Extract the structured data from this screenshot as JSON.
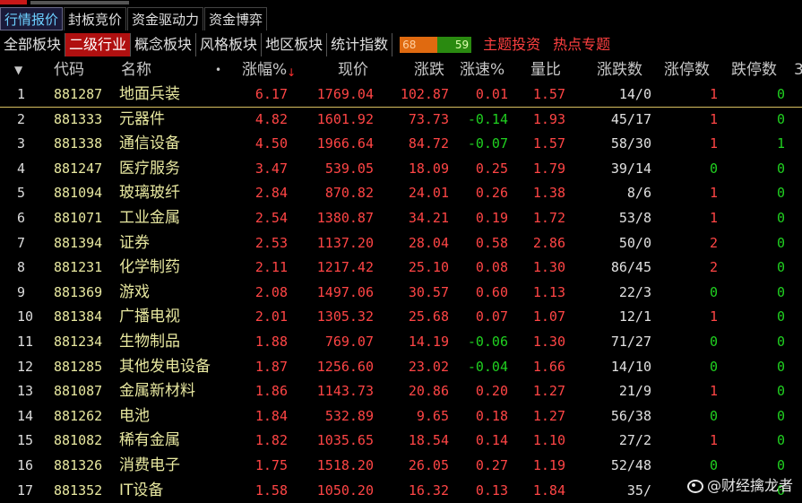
{
  "tabs_main": [
    "行情报价",
    "封板竞价",
    "资金驱动力",
    "资金博弈"
  ],
  "tabs_sector": [
    "全部板块",
    "二级行业",
    "概念板块",
    "风格板块",
    "地区板块",
    "统计指数"
  ],
  "ratio_up": "68",
  "ratio_down": "59",
  "tabs_extra": [
    "主题投资",
    "热点专题"
  ],
  "header": {
    "sort_icon": "▼",
    "code": "代码",
    "name": "名称",
    "dot": "•",
    "pct": "涨幅%",
    "price": "现价",
    "change": "涨跌",
    "speed": "涨速%",
    "volratio": "量比",
    "updown": "涨跌数",
    "limitup": "涨停数",
    "limitdown": "跌停数",
    "more": "3"
  },
  "rows": [
    {
      "idx": "1",
      "code": "881287",
      "name": "地面兵装",
      "pct": "6.17",
      "price": "1769.04",
      "chg": "102.87",
      "spd": "0.01",
      "vr": "1.57",
      "ud": "14/0",
      "lu": "1",
      "ld": "0"
    },
    {
      "idx": "2",
      "code": "881333",
      "name": "元器件",
      "pct": "4.82",
      "price": "1601.92",
      "chg": "73.73",
      "spd": "-0.14",
      "vr": "1.93",
      "ud": "45/17",
      "lu": "1",
      "ld": "0"
    },
    {
      "idx": "3",
      "code": "881338",
      "name": "通信设备",
      "pct": "4.50",
      "price": "1966.64",
      "chg": "84.72",
      "spd": "-0.07",
      "vr": "1.57",
      "ud": "58/30",
      "lu": "1",
      "ld": "1"
    },
    {
      "idx": "4",
      "code": "881247",
      "name": "医疗服务",
      "pct": "3.47",
      "price": "539.05",
      "chg": "18.09",
      "spd": "0.25",
      "vr": "1.79",
      "ud": "39/14",
      "lu": "0",
      "ld": "0"
    },
    {
      "idx": "5",
      "code": "881094",
      "name": "玻璃玻纤",
      "pct": "2.84",
      "price": "870.82",
      "chg": "24.01",
      "spd": "0.26",
      "vr": "1.38",
      "ud": "8/6",
      "lu": "1",
      "ld": "0"
    },
    {
      "idx": "6",
      "code": "881071",
      "name": "工业金属",
      "pct": "2.54",
      "price": "1380.87",
      "chg": "34.21",
      "spd": "0.19",
      "vr": "1.72",
      "ud": "53/8",
      "lu": "1",
      "ld": "0"
    },
    {
      "idx": "7",
      "code": "881394",
      "name": "证券",
      "pct": "2.53",
      "price": "1137.20",
      "chg": "28.04",
      "spd": "0.58",
      "vr": "2.86",
      "ud": "50/0",
      "lu": "2",
      "ld": "0"
    },
    {
      "idx": "8",
      "code": "881231",
      "name": "化学制药",
      "pct": "2.11",
      "price": "1217.42",
      "chg": "25.10",
      "spd": "0.08",
      "vr": "1.30",
      "ud": "86/45",
      "lu": "2",
      "ld": "0"
    },
    {
      "idx": "9",
      "code": "881369",
      "name": "游戏",
      "pct": "2.08",
      "price": "1497.06",
      "chg": "30.57",
      "spd": "0.60",
      "vr": "1.13",
      "ud": "22/3",
      "lu": "0",
      "ld": "0"
    },
    {
      "idx": "10",
      "code": "881384",
      "name": "广播电视",
      "pct": "2.01",
      "price": "1305.32",
      "chg": "25.68",
      "spd": "0.07",
      "vr": "1.07",
      "ud": "12/1",
      "lu": "1",
      "ld": "0"
    },
    {
      "idx": "11",
      "code": "881234",
      "name": "生物制品",
      "pct": "1.88",
      "price": "769.07",
      "chg": "14.19",
      "spd": "-0.06",
      "vr": "1.30",
      "ud": "71/27",
      "lu": "0",
      "ld": "0"
    },
    {
      "idx": "12",
      "code": "881285",
      "name": "其他发电设备",
      "pct": "1.87",
      "price": "1256.60",
      "chg": "23.02",
      "spd": "-0.04",
      "vr": "1.66",
      "ud": "14/10",
      "lu": "0",
      "ld": "0"
    },
    {
      "idx": "13",
      "code": "881087",
      "name": "金属新材料",
      "pct": "1.86",
      "price": "1143.73",
      "chg": "20.86",
      "spd": "0.20",
      "vr": "1.27",
      "ud": "21/9",
      "lu": "1",
      "ld": "0"
    },
    {
      "idx": "14",
      "code": "881262",
      "name": "电池",
      "pct": "1.84",
      "price": "532.89",
      "chg": "9.65",
      "spd": "0.18",
      "vr": "1.27",
      "ud": "56/38",
      "lu": "0",
      "ld": "0"
    },
    {
      "idx": "15",
      "code": "881082",
      "name": "稀有金属",
      "pct": "1.82",
      "price": "1035.65",
      "chg": "18.54",
      "spd": "0.14",
      "vr": "1.10",
      "ud": "27/2",
      "lu": "1",
      "ld": "0"
    },
    {
      "idx": "16",
      "code": "881326",
      "name": "消费电子",
      "pct": "1.75",
      "price": "1518.20",
      "chg": "26.05",
      "spd": "0.27",
      "vr": "1.19",
      "ud": "52/48",
      "lu": "0",
      "ld": "0"
    },
    {
      "idx": "17",
      "code": "881352",
      "name": "IT设备",
      "pct": "1.58",
      "price": "1050.20",
      "chg": "16.32",
      "spd": "0.13",
      "vr": "1.84",
      "ud": "35/",
      "lu": "",
      "ld": "0"
    }
  ],
  "watermark": "@财经擒龙者",
  "colors": {
    "up": "#ff4545",
    "down": "#20d020",
    "code": "#e8e8a0",
    "selected_tab": "#b01010"
  }
}
